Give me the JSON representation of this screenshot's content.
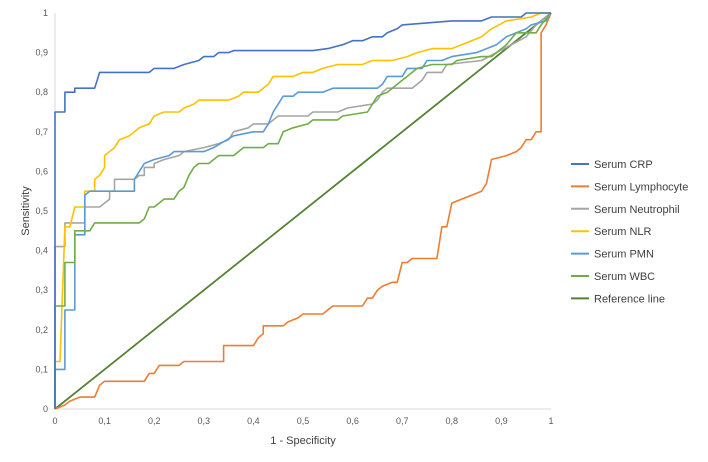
{
  "chart_data": {
    "type": "line",
    "title": "",
    "xlabel": "1 - Specificity",
    "ylabel": "Sensitivity",
    "xlim": [
      0,
      1
    ],
    "ylim": [
      0,
      1
    ],
    "xticks": [
      "0",
      "0,1",
      "0,2",
      "0,3",
      "0,4",
      "0,5",
      "0,6",
      "0,7",
      "0,8",
      "0,9",
      "1"
    ],
    "yticks": [
      "0",
      "0,1",
      "0,2",
      "0,3",
      "0,4",
      "0,5",
      "0,6",
      "0,7",
      "0,8",
      "0,9",
      "1"
    ],
    "grid": false,
    "legend_position": "right",
    "series": [
      {
        "name": "Serum CRP",
        "color": "#4472C4",
        "points": [
          [
            0,
            0
          ],
          [
            0,
            0.75
          ],
          [
            0.02,
            0.75
          ],
          [
            0.02,
            0.8
          ],
          [
            0.04,
            0.8
          ],
          [
            0.04,
            0.81
          ],
          [
            0.08,
            0.81
          ],
          [
            0.09,
            0.85
          ],
          [
            0.19,
            0.85
          ],
          [
            0.2,
            0.86
          ],
          [
            0.24,
            0.86
          ],
          [
            0.26,
            0.87
          ],
          [
            0.29,
            0.88
          ],
          [
            0.3,
            0.89
          ],
          [
            0.32,
            0.89
          ],
          [
            0.33,
            0.9
          ],
          [
            0.35,
            0.9
          ],
          [
            0.36,
            0.905
          ],
          [
            0.52,
            0.905
          ],
          [
            0.55,
            0.91
          ],
          [
            0.58,
            0.92
          ],
          [
            0.6,
            0.93
          ],
          [
            0.62,
            0.93
          ],
          [
            0.64,
            0.94
          ],
          [
            0.66,
            0.94
          ],
          [
            0.67,
            0.95
          ],
          [
            0.69,
            0.96
          ],
          [
            0.7,
            0.97
          ],
          [
            0.8,
            0.98
          ],
          [
            0.86,
            0.98
          ],
          [
            0.88,
            0.99
          ],
          [
            0.94,
            0.99
          ],
          [
            0.95,
            1.0
          ],
          [
            1,
            1
          ]
        ]
      },
      {
        "name": "Serum Lymphocyte",
        "color": "#ED7D31",
        "points": [
          [
            0,
            0
          ],
          [
            0.02,
            0.01
          ],
          [
            0.03,
            0.02
          ],
          [
            0.05,
            0.03
          ],
          [
            0.08,
            0.03
          ],
          [
            0.09,
            0.06
          ],
          [
            0.1,
            0.07
          ],
          [
            0.18,
            0.07
          ],
          [
            0.19,
            0.09
          ],
          [
            0.2,
            0.09
          ],
          [
            0.21,
            0.11
          ],
          [
            0.25,
            0.11
          ],
          [
            0.26,
            0.12
          ],
          [
            0.34,
            0.12
          ],
          [
            0.34,
            0.16
          ],
          [
            0.4,
            0.16
          ],
          [
            0.41,
            0.18
          ],
          [
            0.42,
            0.19
          ],
          [
            0.42,
            0.21
          ],
          [
            0.46,
            0.21
          ],
          [
            0.47,
            0.22
          ],
          [
            0.49,
            0.23
          ],
          [
            0.5,
            0.24
          ],
          [
            0.54,
            0.24
          ],
          [
            0.55,
            0.25
          ],
          [
            0.56,
            0.26
          ],
          [
            0.62,
            0.26
          ],
          [
            0.63,
            0.28
          ],
          [
            0.64,
            0.28
          ],
          [
            0.65,
            0.3
          ],
          [
            0.66,
            0.31
          ],
          [
            0.68,
            0.32
          ],
          [
            0.69,
            0.32
          ],
          [
            0.7,
            0.37
          ],
          [
            0.71,
            0.37
          ],
          [
            0.72,
            0.38
          ],
          [
            0.77,
            0.38
          ],
          [
            0.78,
            0.46
          ],
          [
            0.79,
            0.46
          ],
          [
            0.8,
            0.52
          ],
          [
            0.82,
            0.53
          ],
          [
            0.84,
            0.54
          ],
          [
            0.86,
            0.55
          ],
          [
            0.87,
            0.57
          ],
          [
            0.88,
            0.63
          ],
          [
            0.91,
            0.64
          ],
          [
            0.93,
            0.65
          ],
          [
            0.94,
            0.66
          ],
          [
            0.95,
            0.68
          ],
          [
            0.96,
            0.68
          ],
          [
            0.97,
            0.7
          ],
          [
            0.98,
            0.7
          ],
          [
            0.98,
            0.95
          ],
          [
            0.99,
            0.97
          ],
          [
            1,
            1
          ]
        ]
      },
      {
        "name": "Serum Neutrophil",
        "color": "#A5A5A5",
        "points": [
          [
            0,
            0
          ],
          [
            0,
            0.41
          ],
          [
            0.02,
            0.41
          ],
          [
            0.02,
            0.47
          ],
          [
            0.06,
            0.47
          ],
          [
            0.06,
            0.51
          ],
          [
            0.09,
            0.51
          ],
          [
            0.1,
            0.52
          ],
          [
            0.11,
            0.53
          ],
          [
            0.11,
            0.55
          ],
          [
            0.12,
            0.55
          ],
          [
            0.12,
            0.58
          ],
          [
            0.16,
            0.58
          ],
          [
            0.17,
            0.59
          ],
          [
            0.18,
            0.59
          ],
          [
            0.18,
            0.61
          ],
          [
            0.2,
            0.61
          ],
          [
            0.2,
            0.62
          ],
          [
            0.22,
            0.63
          ],
          [
            0.25,
            0.64
          ],
          [
            0.26,
            0.65
          ],
          [
            0.3,
            0.66
          ],
          [
            0.33,
            0.67
          ],
          [
            0.35,
            0.68
          ],
          [
            0.36,
            0.7
          ],
          [
            0.39,
            0.71
          ],
          [
            0.4,
            0.72
          ],
          [
            0.43,
            0.72
          ],
          [
            0.45,
            0.74
          ],
          [
            0.51,
            0.74
          ],
          [
            0.52,
            0.75
          ],
          [
            0.57,
            0.75
          ],
          [
            0.59,
            0.76
          ],
          [
            0.64,
            0.77
          ],
          [
            0.65,
            0.78
          ],
          [
            0.66,
            0.8
          ],
          [
            0.67,
            0.81
          ],
          [
            0.72,
            0.81
          ],
          [
            0.73,
            0.82
          ],
          [
            0.74,
            0.83
          ],
          [
            0.75,
            0.85
          ],
          [
            0.78,
            0.85
          ],
          [
            0.79,
            0.87
          ],
          [
            0.86,
            0.88
          ],
          [
            0.89,
            0.9
          ],
          [
            0.95,
            0.94
          ],
          [
            0.97,
            0.97
          ],
          [
            1,
            1
          ]
        ]
      },
      {
        "name": "Serum NLR",
        "color": "#FFC000",
        "points": [
          [
            0,
            0
          ],
          [
            0,
            0.12
          ],
          [
            0.01,
            0.12
          ],
          [
            0.02,
            0.46
          ],
          [
            0.03,
            0.46
          ],
          [
            0.04,
            0.51
          ],
          [
            0.06,
            0.51
          ],
          [
            0.06,
            0.55
          ],
          [
            0.08,
            0.55
          ],
          [
            0.08,
            0.58
          ],
          [
            0.09,
            0.59
          ],
          [
            0.1,
            0.61
          ],
          [
            0.1,
            0.64
          ],
          [
            0.12,
            0.66
          ],
          [
            0.13,
            0.68
          ],
          [
            0.15,
            0.69
          ],
          [
            0.16,
            0.7
          ],
          [
            0.17,
            0.71
          ],
          [
            0.19,
            0.72
          ],
          [
            0.2,
            0.74
          ],
          [
            0.22,
            0.75
          ],
          [
            0.25,
            0.75
          ],
          [
            0.26,
            0.76
          ],
          [
            0.28,
            0.77
          ],
          [
            0.29,
            0.78
          ],
          [
            0.35,
            0.78
          ],
          [
            0.37,
            0.79
          ],
          [
            0.38,
            0.8
          ],
          [
            0.41,
            0.8
          ],
          [
            0.42,
            0.81
          ],
          [
            0.43,
            0.82
          ],
          [
            0.44,
            0.84
          ],
          [
            0.48,
            0.84
          ],
          [
            0.5,
            0.85
          ],
          [
            0.52,
            0.85
          ],
          [
            0.54,
            0.86
          ],
          [
            0.57,
            0.87
          ],
          [
            0.62,
            0.87
          ],
          [
            0.64,
            0.88
          ],
          [
            0.68,
            0.88
          ],
          [
            0.71,
            0.89
          ],
          [
            0.73,
            0.9
          ],
          [
            0.76,
            0.91
          ],
          [
            0.8,
            0.91
          ],
          [
            0.82,
            0.92
          ],
          [
            0.84,
            0.93
          ],
          [
            0.86,
            0.94
          ],
          [
            0.88,
            0.96
          ],
          [
            0.91,
            0.98
          ],
          [
            0.96,
            0.99
          ],
          [
            0.98,
            1.0
          ],
          [
            1,
            1
          ]
        ]
      },
      {
        "name": "Serum PMN",
        "color": "#5B9BD5",
        "points": [
          [
            0,
            0
          ],
          [
            0,
            0.1
          ],
          [
            0.02,
            0.1
          ],
          [
            0.02,
            0.25
          ],
          [
            0.04,
            0.25
          ],
          [
            0.04,
            0.44
          ],
          [
            0.06,
            0.44
          ],
          [
            0.06,
            0.54
          ],
          [
            0.07,
            0.55
          ],
          [
            0.16,
            0.55
          ],
          [
            0.16,
            0.58
          ],
          [
            0.17,
            0.6
          ],
          [
            0.18,
            0.62
          ],
          [
            0.2,
            0.63
          ],
          [
            0.23,
            0.64
          ],
          [
            0.24,
            0.65
          ],
          [
            0.3,
            0.65
          ],
          [
            0.32,
            0.66
          ],
          [
            0.36,
            0.69
          ],
          [
            0.4,
            0.7
          ],
          [
            0.42,
            0.7
          ],
          [
            0.43,
            0.72
          ],
          [
            0.44,
            0.75
          ],
          [
            0.45,
            0.77
          ],
          [
            0.46,
            0.79
          ],
          [
            0.48,
            0.79
          ],
          [
            0.49,
            0.8
          ],
          [
            0.54,
            0.8
          ],
          [
            0.56,
            0.81
          ],
          [
            0.65,
            0.81
          ],
          [
            0.66,
            0.82
          ],
          [
            0.67,
            0.84
          ],
          [
            0.7,
            0.84
          ],
          [
            0.71,
            0.86
          ],
          [
            0.74,
            0.86
          ],
          [
            0.75,
            0.88
          ],
          [
            0.78,
            0.88
          ],
          [
            0.8,
            0.89
          ],
          [
            0.85,
            0.9
          ],
          [
            0.89,
            0.92
          ],
          [
            0.91,
            0.94
          ],
          [
            0.95,
            0.96
          ],
          [
            0.96,
            0.97
          ],
          [
            0.99,
            0.98
          ],
          [
            1,
            1
          ]
        ]
      },
      {
        "name": "Serum WBC",
        "color": "#70AD47",
        "points": [
          [
            0,
            0
          ],
          [
            0,
            0.26
          ],
          [
            0.02,
            0.26
          ],
          [
            0.02,
            0.37
          ],
          [
            0.04,
            0.37
          ],
          [
            0.04,
            0.45
          ],
          [
            0.06,
            0.45
          ],
          [
            0.07,
            0.45
          ],
          [
            0.08,
            0.47
          ],
          [
            0.17,
            0.47
          ],
          [
            0.18,
            0.48
          ],
          [
            0.19,
            0.51
          ],
          [
            0.2,
            0.51
          ],
          [
            0.22,
            0.53
          ],
          [
            0.24,
            0.53
          ],
          [
            0.25,
            0.55
          ],
          [
            0.26,
            0.56
          ],
          [
            0.27,
            0.59
          ],
          [
            0.28,
            0.61
          ],
          [
            0.29,
            0.62
          ],
          [
            0.31,
            0.62
          ],
          [
            0.32,
            0.63
          ],
          [
            0.33,
            0.64
          ],
          [
            0.36,
            0.64
          ],
          [
            0.37,
            0.65
          ],
          [
            0.38,
            0.66
          ],
          [
            0.42,
            0.66
          ],
          [
            0.43,
            0.67
          ],
          [
            0.45,
            0.67
          ],
          [
            0.46,
            0.7
          ],
          [
            0.48,
            0.71
          ],
          [
            0.51,
            0.72
          ],
          [
            0.52,
            0.73
          ],
          [
            0.57,
            0.73
          ],
          [
            0.58,
            0.74
          ],
          [
            0.63,
            0.75
          ],
          [
            0.64,
            0.77
          ],
          [
            0.65,
            0.79
          ],
          [
            0.67,
            0.8
          ],
          [
            0.68,
            0.81
          ],
          [
            0.7,
            0.83
          ],
          [
            0.71,
            0.84
          ],
          [
            0.72,
            0.85
          ],
          [
            0.73,
            0.86
          ],
          [
            0.76,
            0.87
          ],
          [
            0.8,
            0.87
          ],
          [
            0.81,
            0.88
          ],
          [
            0.86,
            0.89
          ],
          [
            0.88,
            0.89
          ],
          [
            0.89,
            0.9
          ],
          [
            0.91,
            0.92
          ],
          [
            0.93,
            0.95
          ],
          [
            0.97,
            0.95
          ],
          [
            0.98,
            0.97
          ],
          [
            1,
            1
          ]
        ]
      },
      {
        "name": "Reference line",
        "color": "#548235",
        "points": [
          [
            0,
            0
          ],
          [
            1,
            1
          ]
        ]
      }
    ]
  }
}
